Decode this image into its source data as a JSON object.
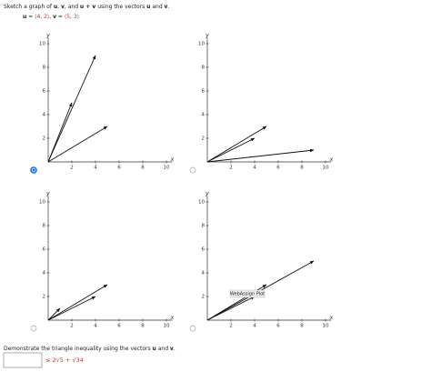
{
  "prompt": [
    {
      "text": "Sketch a graph of ",
      "bold": false
    },
    {
      "text": "u",
      "bold": true
    },
    {
      "text": ", ",
      "bold": false
    },
    {
      "text": "v",
      "bold": true
    },
    {
      "text": ", and ",
      "bold": false
    },
    {
      "text": "u + v",
      "bold": true
    },
    {
      "text": " using the vectors ",
      "bold": false
    },
    {
      "text": "u",
      "bold": true
    },
    {
      "text": " and ",
      "bold": false
    },
    {
      "text": "v",
      "bold": true
    },
    {
      "text": ".",
      "bold": false
    }
  ],
  "given": [
    {
      "text": "u",
      "bold": true
    },
    {
      "text": " = ",
      "bold": false
    },
    {
      "text": "⟨4, 2⟩",
      "bold": false,
      "color": "#c0392b"
    },
    {
      "text": ",    ",
      "bold": false
    },
    {
      "text": "v",
      "bold": true
    },
    {
      "text": " = ",
      "bold": false
    },
    {
      "text": "⟨5, 3⟩",
      "bold": false,
      "color": "#c0392b"
    }
  ],
  "graphs": [
    {
      "selected": true,
      "x_label": "x",
      "y_label": "y",
      "xlim": [
        0,
        10.5
      ],
      "ylim": [
        0,
        10.5
      ],
      "xticks": [
        2,
        4,
        6,
        8,
        10
      ],
      "yticks": [
        2,
        4,
        6,
        8,
        10
      ],
      "vectors": [
        {
          "x": 4,
          "y": 9
        },
        {
          "x": 2,
          "y": 5
        },
        {
          "x": 5,
          "y": 3
        }
      ]
    },
    {
      "selected": false,
      "x_label": "x",
      "y_label": "y",
      "xlim": [
        0,
        10.5
      ],
      "ylim": [
        0,
        10.5
      ],
      "xticks": [
        2,
        4,
        6,
        8,
        10
      ],
      "yticks": [
        2,
        4,
        6,
        8,
        10
      ],
      "vectors": [
        {
          "x": 5,
          "y": 3
        },
        {
          "x": 4,
          "y": 2
        },
        {
          "x": 9,
          "y": 1
        }
      ]
    },
    {
      "selected": false,
      "x_label": "x",
      "y_label": "y",
      "xlim": [
        0,
        10.5
      ],
      "ylim": [
        0,
        10.5
      ],
      "xticks": [
        2,
        4,
        6,
        8,
        10
      ],
      "yticks": [
        2,
        4,
        6,
        8,
        10
      ],
      "vectors": [
        {
          "x": 5,
          "y": 3
        },
        {
          "x": 4,
          "y": 2
        },
        {
          "x": 1,
          "y": 1
        }
      ]
    },
    {
      "selected": false,
      "x_label": "x",
      "y_label": "y",
      "xlim": [
        0,
        10.5
      ],
      "ylim": [
        0,
        10.5
      ],
      "xticks": [
        2,
        4,
        6,
        8,
        10
      ],
      "yticks": [
        2,
        4,
        6,
        8,
        10
      ],
      "vectors": [
        {
          "x": 9,
          "y": 5
        },
        {
          "x": 5,
          "y": 3
        },
        {
          "x": 4,
          "y": 2
        }
      ],
      "tooltip": "WebAssign Plot"
    }
  ],
  "inequality_prompt": [
    {
      "text": "Demonstrate the triangle inequality using the vectors ",
      "bold": false
    },
    {
      "text": "u",
      "bold": true
    },
    {
      "text": " and ",
      "bold": false
    },
    {
      "text": "v",
      "bold": true
    },
    {
      "text": ".",
      "bold": false
    }
  ],
  "answer_suffix": "≤ 2√5 + √34"
}
